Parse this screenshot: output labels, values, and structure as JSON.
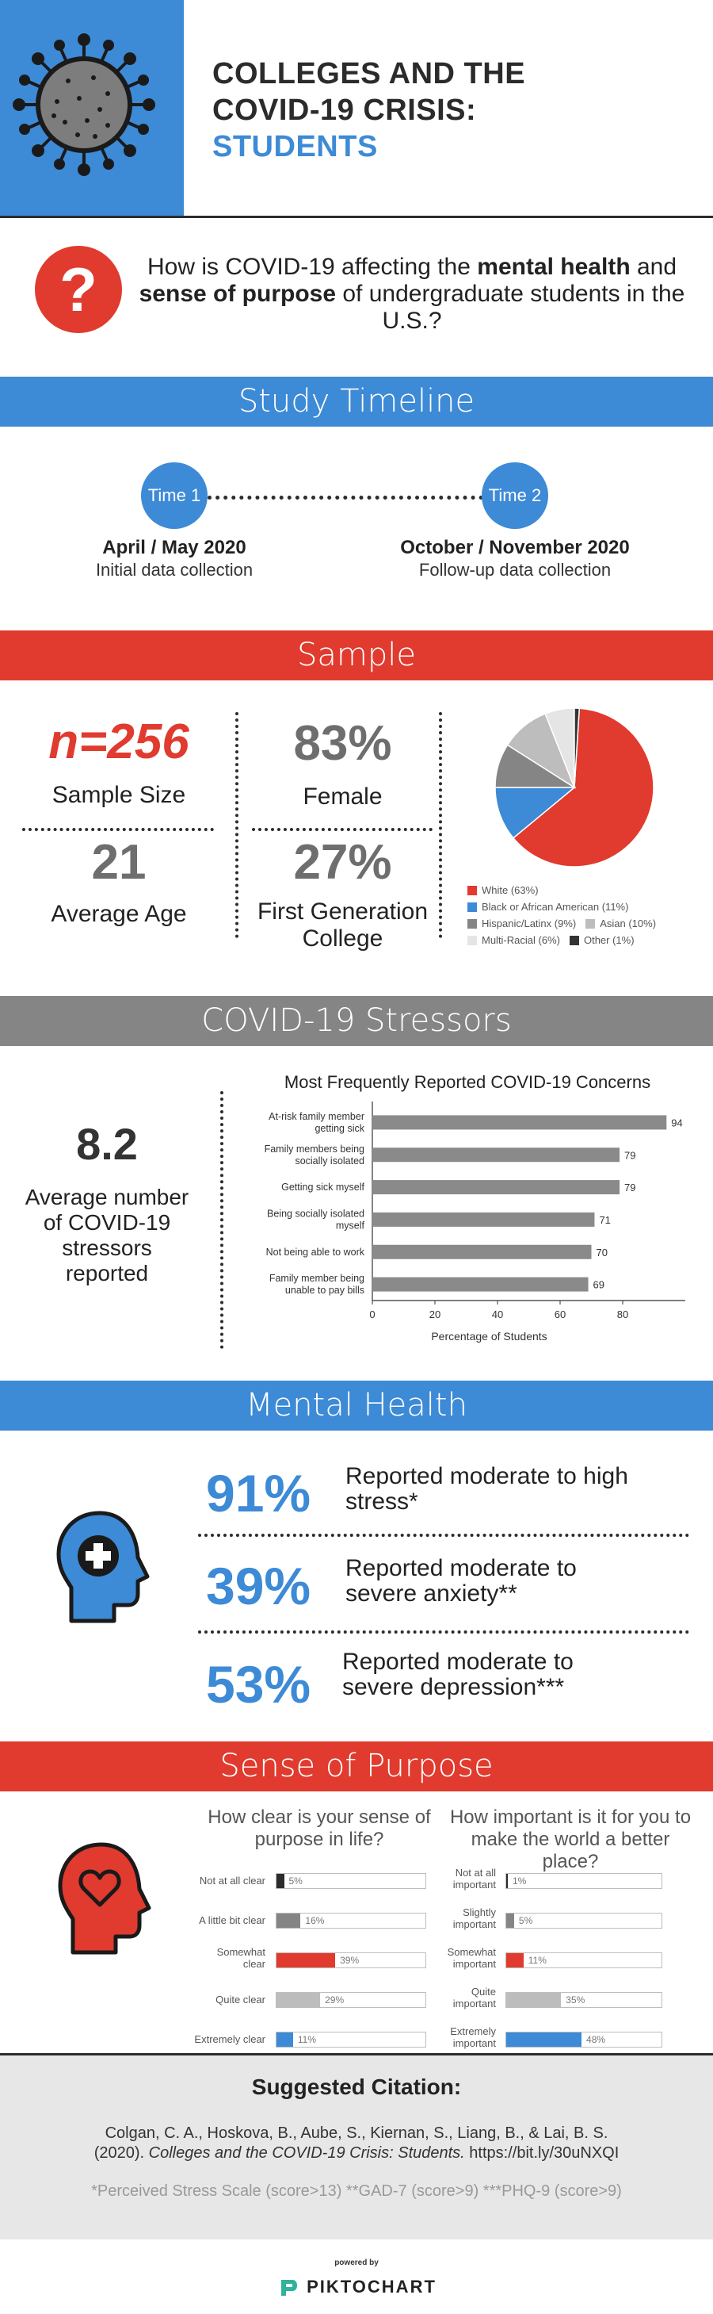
{
  "header": {
    "title_line1": "COLLEGES AND THE",
    "title_line2": "COVID-19 CRISIS:",
    "title_line3": "STUDENTS"
  },
  "question": {
    "icon": "question-mark-icon",
    "mark": "?",
    "part1": "How is COVID-19 affecting the ",
    "bold1": "mental health",
    "part2": " and ",
    "bold2": "sense of purpose",
    "part3": " of undergraduate students in the U.S.?"
  },
  "timeline": {
    "banner": "Study Timeline",
    "time1_label": "Time 1",
    "time2_label": "Time 2",
    "time1_date": "April / May 2020",
    "time1_desc": "Initial data collection",
    "time2_date": "October / November 2020",
    "time2_desc": "Follow-up data collection"
  },
  "sample": {
    "banner": "Sample",
    "n_value": "n=256",
    "n_label": "Sample Size",
    "age_value": "21",
    "age_label": "Average Age",
    "female_value": "83%",
    "female_label": "Female",
    "firstgen_value": "27%",
    "firstgen_label_line1": "First Generation",
    "firstgen_label_line2": "College",
    "race": [
      {
        "label": "White (63%)",
        "value": 63,
        "color": "#e03b2e"
      },
      {
        "label": "Black or African American (11%)",
        "value": 11,
        "color": "#3d8ad6"
      },
      {
        "label": "Hispanic/Latinx (9%)",
        "value": 9,
        "color": "#858585"
      },
      {
        "label": "Asian (10%)",
        "value": 10,
        "color": "#bdbdbd"
      },
      {
        "label": "Multi-Racial (6%)",
        "value": 6,
        "color": "#e5e5e5"
      },
      {
        "label": "Other (1%)",
        "value": 1,
        "color": "#333333"
      }
    ]
  },
  "stressors": {
    "banner": "COVID-19 Stressors",
    "avg_value": "8.2",
    "avg_label_line1": "Average number",
    "avg_label_line2": "of COVID-19",
    "avg_label_line3": "stressors",
    "avg_label_line4": "reported"
  },
  "chart_data": {
    "type": "bar",
    "orientation": "horizontal",
    "title": "Most Frequently Reported COVID-19 Concerns",
    "xlabel": "Percentage of Students",
    "ylabel": "",
    "xlim": [
      0,
      100
    ],
    "x_ticks": [
      "0",
      "20",
      "40",
      "60",
      "80"
    ],
    "grid": false,
    "bar_color": "#8a8a8a",
    "categories": [
      [
        "At-risk family member",
        "getting sick"
      ],
      [
        "Family members being",
        "socially isolated"
      ],
      [
        "Getting sick myself"
      ],
      [
        "Being socially isolated",
        "myself"
      ],
      [
        "Not being able to work"
      ],
      [
        "Family member being",
        "unable to pay bills"
      ]
    ],
    "values": [
      94,
      79,
      79,
      71,
      70,
      69
    ]
  },
  "mental": {
    "banner": "Mental Health",
    "icon": "head-plus-icon",
    "items": [
      {
        "pct": "91%",
        "line1": "Reported moderate to high",
        "line2": "stress*"
      },
      {
        "pct": "39%",
        "line1": "Reported moderate to",
        "line2": "severe anxiety**"
      },
      {
        "pct": "53%",
        "line1": "Reported moderate to",
        "line2": "severe depression***"
      }
    ]
  },
  "purpose": {
    "banner": "Sense of Purpose",
    "icon": "head-heart-icon",
    "q1_line1": "How clear is your sense of",
    "q1_line2": "purpose in life?",
    "q2_line1": "How important is it for you to",
    "q2_line2": "make the world a better",
    "q2_line3": "place?",
    "q1": [
      {
        "label1": "Not at all clear",
        "label2": "",
        "pct_text": "5%",
        "value": 5,
        "color": "#2c2c2c"
      },
      {
        "label1": "A little bit clear",
        "label2": "",
        "pct_text": "16%",
        "value": 16,
        "color": "#858585"
      },
      {
        "label1": "Somewhat",
        "label2": "clear",
        "pct_text": "39%",
        "value": 39,
        "color": "#e03b2e"
      },
      {
        "label1": "Quite clear",
        "label2": "",
        "pct_text": "29%",
        "value": 29,
        "color": "#bdbdbd"
      },
      {
        "label1": "Extremely clear",
        "label2": "",
        "pct_text": "11%",
        "value": 11,
        "color": "#3d8ad6"
      }
    ],
    "q2": [
      {
        "label1": "Not at all",
        "label2": "important",
        "pct_text": "1%",
        "value": 1,
        "color": "#2c2c2c"
      },
      {
        "label1": "Slightly",
        "label2": "important",
        "pct_text": "5%",
        "value": 5,
        "color": "#858585"
      },
      {
        "label1": "Somewhat",
        "label2": "important",
        "pct_text": "11%",
        "value": 11,
        "color": "#e03b2e"
      },
      {
        "label1": "Quite",
        "label2": "important",
        "pct_text": "35%",
        "value": 35,
        "color": "#bdbdbd"
      },
      {
        "label1": "Extremely",
        "label2": "important",
        "pct_text": "48%",
        "value": 48,
        "color": "#3d8ad6"
      }
    ]
  },
  "citation": {
    "title": "Suggested Citation:",
    "line1": "Colgan, C. A., Hoskova, B., Aube, S., Kiernan, S., Liang, B., & Lai, B. S.",
    "line2_prefix": "(2020). ",
    "line2_italic": "Colleges and the COVID-19 Crisis: Students.",
    "line2_suffix": " https://bit.ly/30uNXQI",
    "footnote": "*Perceived Stress Scale (score>13) **GAD-7 (score>9) ***PHQ-9 (score>9)"
  },
  "footer": {
    "powered": "powered by",
    "brand": "PIKTOCHART"
  },
  "colors": {
    "blue": "#3d8ad6",
    "red": "#e03b2e",
    "gray": "#858585"
  }
}
